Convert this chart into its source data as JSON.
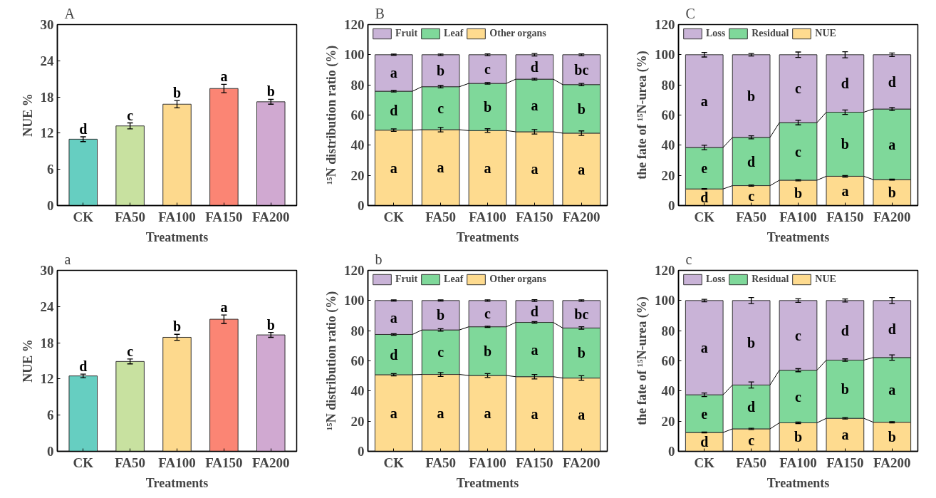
{
  "chart_data": [
    {
      "type": "bar",
      "title": "A",
      "xlabel": "Treatments",
      "ylabel": "NUE %",
      "categories": [
        "CK",
        "FA50",
        "FA100",
        "FA150",
        "FA200"
      ],
      "values": [
        11.0,
        13.2,
        16.8,
        19.4,
        17.2
      ],
      "errors": [
        0.4,
        0.5,
        0.6,
        0.7,
        0.4
      ],
      "colors": [
        "#66cec1",
        "#c8e1a0",
        "#fdd98d",
        "#fb8574",
        "#d0a9d1"
      ],
      "ylim": [
        0,
        30
      ],
      "yticks": [
        0,
        6,
        12,
        18,
        24,
        30
      ],
      "annotations": [
        "d",
        "c",
        "b",
        "a",
        "b"
      ]
    },
    {
      "type": "bar",
      "stacked": true,
      "title": "B",
      "xlabel": "Treatments",
      "ylabel": "¹⁵N distribution ratio (%)",
      "categories": [
        "CK",
        "FA50",
        "FA100",
        "FA150",
        "FA200"
      ],
      "series": [
        {
          "name": "Other organs",
          "color": "#fedb8f",
          "values": [
            50.0,
            50.3,
            49.7,
            48.9,
            48.0
          ],
          "errors": [
            0.8,
            1.5,
            1.2,
            1.5,
            1.5
          ]
        },
        {
          "name": "Leaf",
          "color": "#7fd89a",
          "values": [
            25.8,
            28.5,
            31.3,
            34.9,
            32.2
          ],
          "errors": [
            0.5,
            0.8,
            0.5,
            0.6,
            0.8
          ]
        },
        {
          "name": "Fruit",
          "color": "#c9b3d7",
          "values": [
            24.2,
            21.2,
            19.0,
            16.2,
            19.8
          ],
          "errors": [
            0.4,
            0.5,
            0.6,
            0.8,
            0.6
          ]
        }
      ],
      "ylim": [
        0,
        120
      ],
      "yticks": [
        0,
        20,
        40,
        60,
        80,
        100,
        120
      ],
      "legend": "top left",
      "annotations": [
        "a",
        "b",
        "c",
        "d",
        "bc",
        "d",
        "c",
        "b",
        "a",
        "b",
        "a",
        "a",
        "a",
        "a",
        "a"
      ]
    },
    {
      "type": "bar",
      "stacked": true,
      "title": "C",
      "xlabel": "Treatments",
      "ylabel": "the fate of ¹⁵N-urea (%)",
      "categories": [
        "CK",
        "FA50",
        "FA100",
        "FA150",
        "FA200"
      ],
      "series": [
        {
          "name": "NUE",
          "color": "#fedb8f",
          "values": [
            11.0,
            13.2,
            16.8,
            19.4,
            17.2
          ],
          "errors": [
            0.3,
            0.4,
            0.4,
            0.5,
            0.3
          ]
        },
        {
          "name": "Residual",
          "color": "#7fd89a",
          "values": [
            27.5,
            32.0,
            38.2,
            42.5,
            46.8
          ],
          "errors": [
            1.5,
            1.0,
            1.5,
            1.5,
            1.0
          ]
        },
        {
          "name": "Loss",
          "color": "#c9b3d7",
          "values": [
            61.5,
            54.8,
            45.0,
            38.1,
            36.0
          ],
          "errors": [
            1.5,
            0.8,
            1.8,
            2.0,
            1.2
          ]
        }
      ],
      "ylim": [
        0,
        120
      ],
      "yticks": [
        0,
        20,
        40,
        60,
        80,
        100,
        120
      ],
      "legend": "top left",
      "annotations": [
        "a",
        "b",
        "c",
        "d",
        "d",
        "e",
        "d",
        "c",
        "b",
        "a",
        "d",
        "c",
        "b",
        "a",
        "b"
      ]
    },
    {
      "type": "bar",
      "title": "a",
      "xlabel": "Treatments",
      "ylabel": "NUE %",
      "categories": [
        "CK",
        "FA50",
        "FA100",
        "FA150",
        "FA200"
      ],
      "values": [
        12.5,
        14.9,
        18.9,
        21.9,
        19.3
      ],
      "errors": [
        0.3,
        0.4,
        0.5,
        0.7,
        0.4
      ],
      "colors": [
        "#66cec1",
        "#c8e1a0",
        "#fdd98d",
        "#fb8574",
        "#d0a9d1"
      ],
      "ylim": [
        0,
        30
      ],
      "yticks": [
        0,
        6,
        12,
        18,
        24,
        30
      ],
      "annotations": [
        "d",
        "c",
        "b",
        "a",
        "b"
      ]
    },
    {
      "type": "bar",
      "stacked": true,
      "title": "b",
      "xlabel": "Treatments",
      "ylabel": "¹⁵N distribution ratio (%)",
      "categories": [
        "CK",
        "FA50",
        "FA100",
        "FA150",
        "FA200"
      ],
      "series": [
        {
          "name": "Other organs",
          "color": "#fedb8f",
          "values": [
            50.8,
            51.0,
            50.3,
            49.5,
            48.6
          ],
          "errors": [
            0.8,
            1.3,
            1.3,
            1.5,
            1.5
          ]
        },
        {
          "name": "Leaf",
          "color": "#7fd89a",
          "values": [
            26.7,
            29.5,
            32.3,
            36.0,
            33.2
          ],
          "errors": [
            0.5,
            0.8,
            0.4,
            0.5,
            0.8
          ]
        },
        {
          "name": "Fruit",
          "color": "#c9b3d7",
          "values": [
            22.5,
            19.5,
            17.4,
            14.5,
            18.2
          ],
          "errors": [
            0.4,
            0.4,
            0.5,
            0.6,
            0.5
          ]
        }
      ],
      "ylim": [
        0,
        120
      ],
      "yticks": [
        0,
        20,
        40,
        60,
        80,
        100,
        120
      ],
      "legend": "top left",
      "annotations": [
        "a",
        "b",
        "c",
        "d",
        "bc",
        "d",
        "c",
        "b",
        "a",
        "b",
        "a",
        "a",
        "a",
        "a",
        "a"
      ]
    },
    {
      "type": "bar",
      "stacked": true,
      "title": "c",
      "xlabel": "Treatments",
      "ylabel": "the fate of ¹⁵N-urea (%)",
      "categories": [
        "CK",
        "FA50",
        "FA100",
        "FA150",
        "FA200"
      ],
      "series": [
        {
          "name": "NUE",
          "color": "#fedb8f",
          "values": [
            12.5,
            14.9,
            18.9,
            21.9,
            19.3
          ],
          "errors": [
            0.3,
            0.4,
            0.5,
            0.5,
            0.4
          ]
        },
        {
          "name": "Residual",
          "color": "#7fd89a",
          "values": [
            25.0,
            29.1,
            34.9,
            38.6,
            42.9
          ],
          "errors": [
            1.2,
            2.0,
            1.0,
            0.8,
            1.8
          ]
        },
        {
          "name": "Loss",
          "color": "#c9b3d7",
          "values": [
            62.5,
            56.0,
            46.2,
            39.5,
            37.8
          ],
          "errors": [
            0.8,
            2.0,
            1.2,
            1.0,
            2.0
          ]
        }
      ],
      "ylim": [
        0,
        120
      ],
      "yticks": [
        0,
        20,
        40,
        60,
        80,
        100,
        120
      ],
      "legend": "top left",
      "annotations": [
        "a",
        "b",
        "c",
        "d",
        "d",
        "e",
        "d",
        "c",
        "b",
        "a",
        "d",
        "c",
        "b",
        "a",
        "b"
      ]
    }
  ]
}
